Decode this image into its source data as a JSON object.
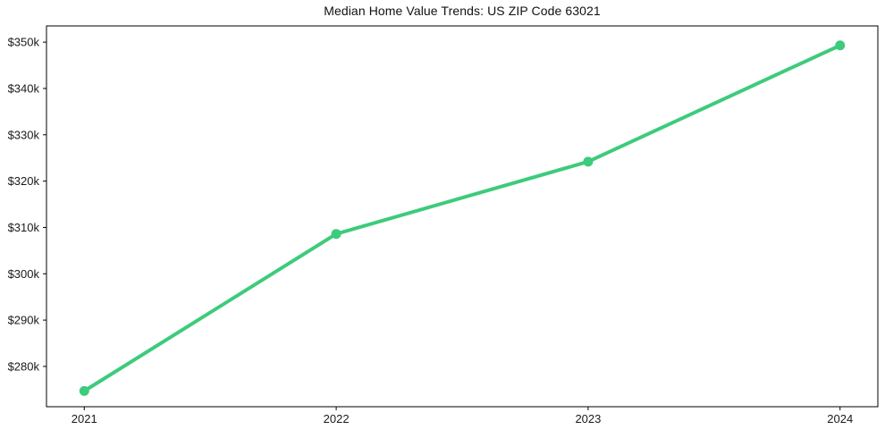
{
  "chart_data": {
    "type": "line",
    "title": "Median Home Value Trends: US ZIP Code 63021",
    "x": [
      2021,
      2022,
      2023,
      2024
    ],
    "categories": [
      "2021",
      "2022",
      "2023",
      "2024"
    ],
    "series": [
      {
        "name": "Median Home Value",
        "values": [
          274700,
          308600,
          324200,
          349300
        ]
      }
    ],
    "y_ticks": [
      {
        "value": 280000,
        "label": "$280k"
      },
      {
        "value": 290000,
        "label": "$290k"
      },
      {
        "value": 300000,
        "label": "$300k"
      },
      {
        "value": 310000,
        "label": "$310k"
      },
      {
        "value": 320000,
        "label": "$320k"
      },
      {
        "value": 330000,
        "label": "$330k"
      },
      {
        "value": 340000,
        "label": "$340k"
      },
      {
        "value": 350000,
        "label": "$350k"
      }
    ],
    "xlim": [
      2020.85,
      2024.15
    ],
    "ylim": [
      271300,
      353500
    ],
    "grid": false,
    "legend": "none",
    "line_color": "#3dcb7c",
    "axis_color": "#000000",
    "text_color": "#1a1a1a",
    "background": "#ffffff"
  }
}
